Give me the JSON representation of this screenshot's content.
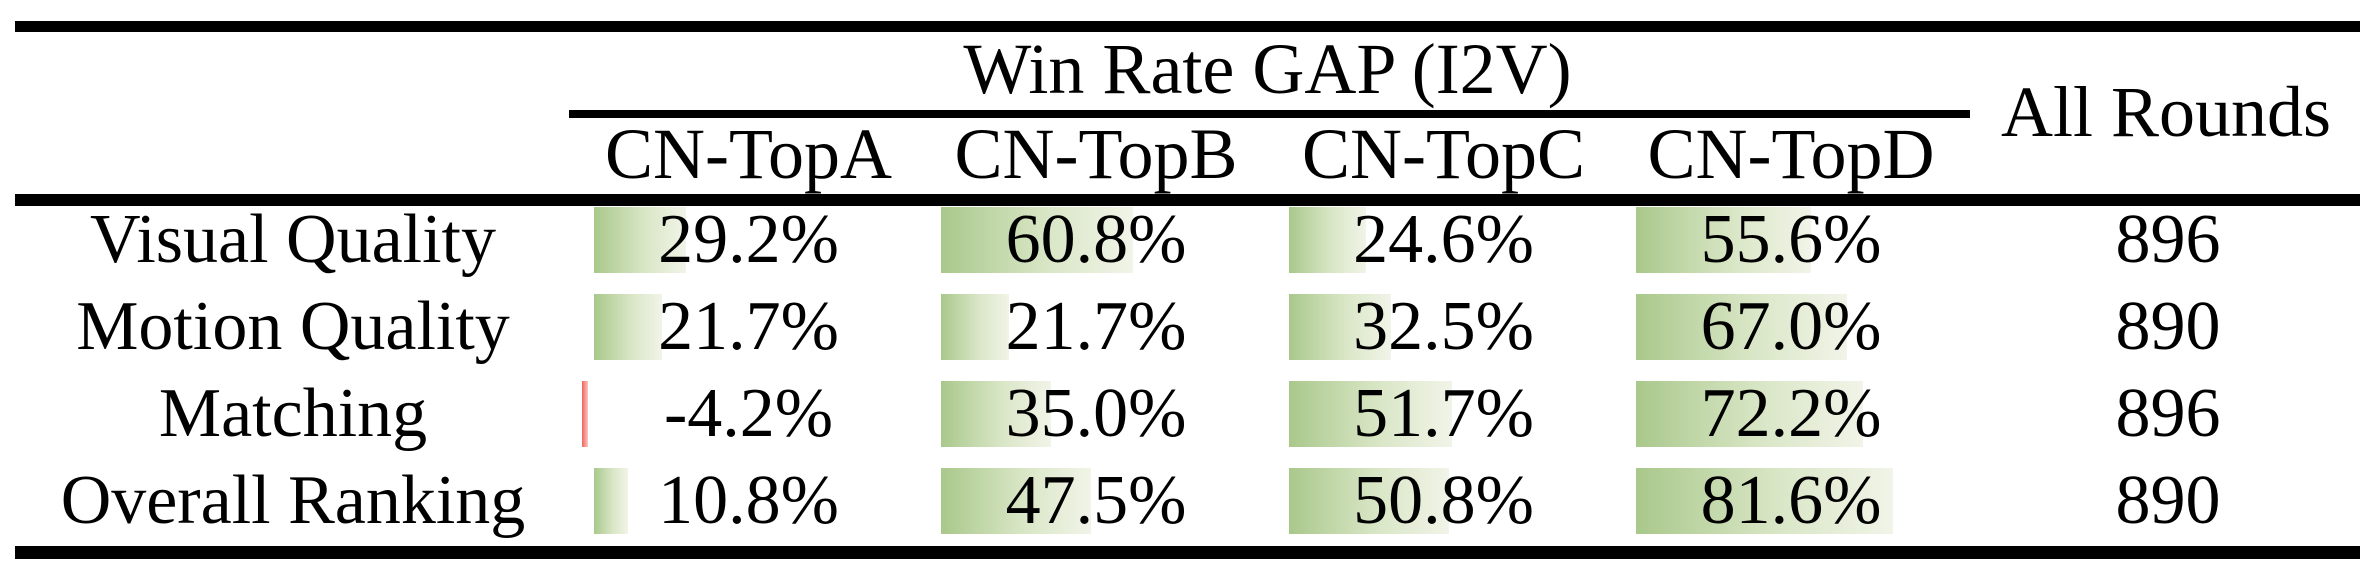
{
  "table": {
    "group_header": "Win Rate GAP (I2V)",
    "columns": [
      "CN-TopA",
      "CN-TopB",
      "CN-TopC",
      "CN-TopD"
    ],
    "all_rounds_header": "All Rounds",
    "rows": [
      {
        "label": "Visual Quality",
        "cells": [
          {
            "text": "29.2%",
            "value": 29.2
          },
          {
            "text": "60.8%",
            "value": 60.8
          },
          {
            "text": "24.6%",
            "value": 24.6
          },
          {
            "text": "55.6%",
            "value": 55.6
          }
        ],
        "all_rounds": "896"
      },
      {
        "label": "Motion Quality",
        "cells": [
          {
            "text": "21.7%",
            "value": 21.7
          },
          {
            "text": "21.7%",
            "value": 21.7
          },
          {
            "text": "32.5%",
            "value": 32.5
          },
          {
            "text": "67.0%",
            "value": 67.0
          }
        ],
        "all_rounds": "890"
      },
      {
        "label": "Matching",
        "cells": [
          {
            "text": "-4.2%",
            "value": -4.2
          },
          {
            "text": "35.0%",
            "value": 35.0
          },
          {
            "text": "51.7%",
            "value": 51.7
          },
          {
            "text": "72.2%",
            "value": 72.2
          }
        ],
        "all_rounds": "896"
      },
      {
        "label": "Overall Ranking",
        "cells": [
          {
            "text": "10.8%",
            "value": 10.8
          },
          {
            "text": "47.5%",
            "value": 47.5
          },
          {
            "text": "50.8%",
            "value": 50.8
          },
          {
            "text": "81.6%",
            "value": 81.6
          }
        ],
        "all_rounds": "890"
      }
    ],
    "colors": {
      "bar_green_start": "#a9c88b",
      "bar_green_mid": "#d9e6c6",
      "bar_green_end": "#f1f4e8",
      "bar_red_start": "#ef655c",
      "bar_red_end": "#f9c6c0",
      "rule_color": "#000000"
    }
  },
  "chart_data": {
    "type": "table",
    "title": "Win Rate GAP (I2V)",
    "categories": [
      "CN-TopA",
      "CN-TopB",
      "CN-TopC",
      "CN-TopD"
    ],
    "series": [
      {
        "name": "Visual Quality",
        "values": [
          29.2,
          60.8,
          24.6,
          55.6
        ],
        "all_rounds": 896
      },
      {
        "name": "Motion Quality",
        "values": [
          21.7,
          21.7,
          32.5,
          67.0
        ],
        "all_rounds": 890
      },
      {
        "name": "Matching",
        "values": [
          -4.2,
          35.0,
          51.7,
          72.2
        ],
        "all_rounds": 896
      },
      {
        "name": "Overall Ranking",
        "values": [
          10.8,
          47.5,
          50.8,
          81.6
        ],
        "all_rounds": 890
      }
    ],
    "extra_column": "All Rounds",
    "unit": "%",
    "bar_style": "in-cell horizontal data bars, green gradient positive, red negative"
  }
}
